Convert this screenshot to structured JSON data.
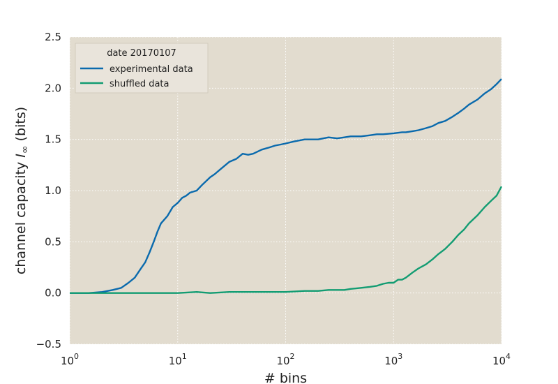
{
  "chart_data": {
    "type": "line",
    "xlabel": "# bins",
    "ylabel": "channel capacity I∞ (bits)",
    "ylabel_parts": {
      "prefix": "channel capacity ",
      "symbol": "I",
      "subscript": "∞",
      "suffix": " (bits)"
    },
    "xscale": "log",
    "xlim": [
      1,
      10000
    ],
    "ylim": [
      -0.5,
      2.5
    ],
    "x_ticks": [
      1,
      10,
      100,
      1000,
      10000
    ],
    "x_tick_labels": [
      {
        "base": "10",
        "exp": "0"
      },
      {
        "base": "10",
        "exp": "1"
      },
      {
        "base": "10",
        "exp": "2"
      },
      {
        "base": "10",
        "exp": "3"
      },
      {
        "base": "10",
        "exp": "4"
      }
    ],
    "y_ticks": [
      -0.5,
      0.0,
      0.5,
      1.0,
      1.5,
      2.0,
      2.5
    ],
    "y_tick_labels": [
      "−0.5",
      "0.0",
      "0.5",
      "1.0",
      "1.5",
      "2.0",
      "2.5"
    ],
    "grid": true,
    "legend": {
      "title": "date 20170107",
      "placement": "top-left"
    },
    "series": [
      {
        "name": "experimental data",
        "color": "#0a6aad",
        "x": [
          1,
          1.5,
          2,
          2.5,
          3,
          3.5,
          4,
          4.5,
          5,
          5.5,
          6,
          6.5,
          7,
          8,
          9,
          10,
          11,
          12,
          13,
          15,
          17,
          20,
          22,
          25,
          30,
          35,
          40,
          45,
          50,
          60,
          70,
          80,
          90,
          100,
          120,
          150,
          170,
          200,
          250,
          300,
          350,
          400,
          500,
          600,
          700,
          800,
          1000,
          1200,
          1300,
          1500,
          1700,
          2000,
          2300,
          2600,
          3000,
          3500,
          4000,
          4500,
          5000,
          6000,
          7000,
          8000,
          9000,
          10000
        ],
        "y": [
          0.0,
          0.0,
          0.01,
          0.03,
          0.05,
          0.1,
          0.15,
          0.23,
          0.3,
          0.4,
          0.5,
          0.6,
          0.68,
          0.75,
          0.84,
          0.88,
          0.93,
          0.95,
          0.98,
          1.0,
          1.06,
          1.13,
          1.16,
          1.21,
          1.28,
          1.31,
          1.36,
          1.35,
          1.36,
          1.4,
          1.42,
          1.44,
          1.45,
          1.46,
          1.48,
          1.5,
          1.5,
          1.5,
          1.52,
          1.51,
          1.52,
          1.53,
          1.53,
          1.54,
          1.55,
          1.55,
          1.56,
          1.57,
          1.57,
          1.58,
          1.59,
          1.61,
          1.63,
          1.66,
          1.68,
          1.72,
          1.76,
          1.8,
          1.84,
          1.89,
          1.95,
          1.99,
          2.04,
          2.09
        ]
      },
      {
        "name": "shuffled data",
        "color": "#129c72",
        "x": [
          1,
          2,
          3,
          5,
          7,
          10,
          15,
          20,
          30,
          50,
          70,
          100,
          150,
          200,
          250,
          300,
          350,
          400,
          500,
          600,
          700,
          800,
          900,
          1000,
          1100,
          1200,
          1300,
          1500,
          1700,
          2000,
          2300,
          2600,
          3000,
          3500,
          4000,
          4500,
          5000,
          6000,
          7000,
          8000,
          9000,
          10000
        ],
        "y": [
          0.0,
          0.0,
          0.0,
          0.0,
          0.0,
          0.0,
          0.01,
          0.0,
          0.01,
          0.01,
          0.01,
          0.01,
          0.02,
          0.02,
          0.03,
          0.03,
          0.03,
          0.04,
          0.05,
          0.06,
          0.07,
          0.09,
          0.1,
          0.1,
          0.13,
          0.13,
          0.15,
          0.2,
          0.24,
          0.28,
          0.33,
          0.38,
          0.43,
          0.5,
          0.57,
          0.62,
          0.68,
          0.76,
          0.84,
          0.9,
          0.95,
          1.04
        ]
      }
    ]
  }
}
